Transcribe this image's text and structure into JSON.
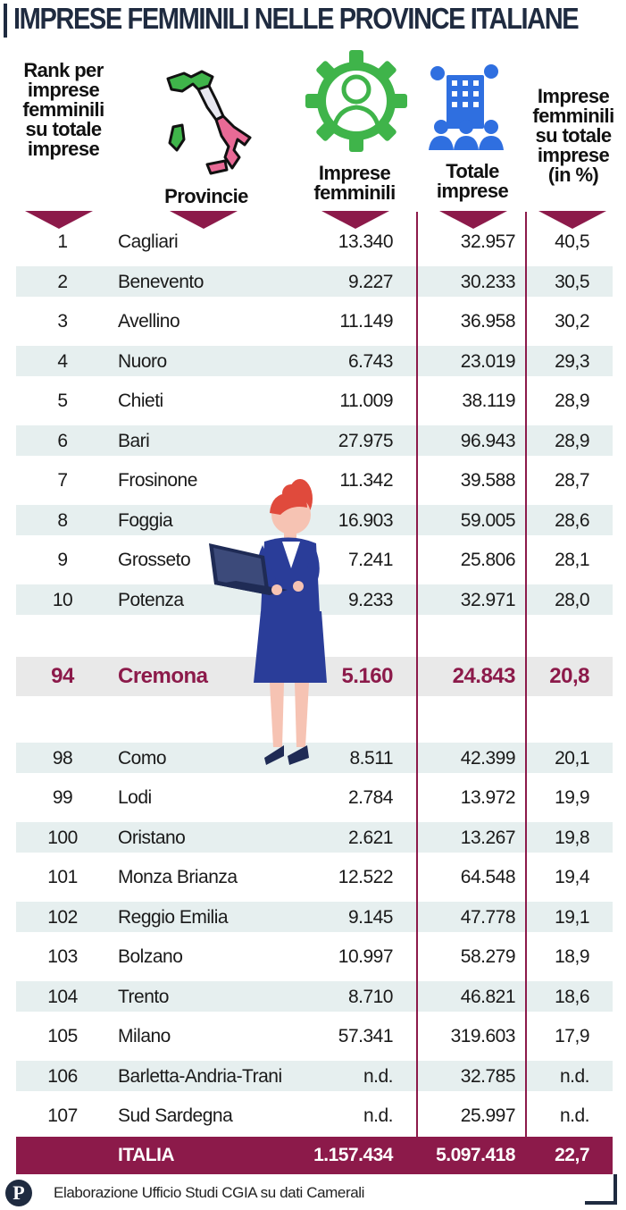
{
  "title": "IMPRESE FEMMINILI NELLE PROVINCE ITALIANE",
  "headers": {
    "rank": "Rank per imprese femminili su totale imprese",
    "provincie": "Provincie",
    "femminili": "Imprese femminili",
    "totale": "Totale imprese",
    "percent": "Imprese femminili su totale imprese (in %)"
  },
  "chart_data": {
    "type": "table",
    "title": "IMPRESE FEMMINILI NELLE PROVINCE ITALIANE",
    "columns": [
      "Rank per imprese femminili su totale imprese",
      "Provincie",
      "Imprese femminili",
      "Totale imprese",
      "Imprese femminili su totale imprese (in %)"
    ],
    "rows": [
      {
        "rank": "1",
        "provincia": "Cagliari",
        "femminili": "13.340",
        "totale": "32.957",
        "percent": "40,5"
      },
      {
        "rank": "2",
        "provincia": "Benevento",
        "femminili": "9.227",
        "totale": "30.233",
        "percent": "30,5"
      },
      {
        "rank": "3",
        "provincia": "Avellino",
        "femminili": "11.149",
        "totale": "36.958",
        "percent": "30,2"
      },
      {
        "rank": "4",
        "provincia": "Nuoro",
        "femminili": "6.743",
        "totale": "23.019",
        "percent": "29,3"
      },
      {
        "rank": "5",
        "provincia": "Chieti",
        "femminili": "11.009",
        "totale": "38.119",
        "percent": "28,9"
      },
      {
        "rank": "6",
        "provincia": "Bari",
        "femminili": "27.975",
        "totale": "96.943",
        "percent": "28,9"
      },
      {
        "rank": "7",
        "provincia": "Frosinone",
        "femminili": "11.342",
        "totale": "39.588",
        "percent": "28,7"
      },
      {
        "rank": "8",
        "provincia": "Foggia",
        "femminili": "16.903",
        "totale": "59.005",
        "percent": "28,6"
      },
      {
        "rank": "9",
        "provincia": "Grosseto",
        "femminili": "7.241",
        "totale": "25.806",
        "percent": "28,1"
      },
      {
        "rank": "10",
        "provincia": "Potenza",
        "femminili": "9.233",
        "totale": "32.971",
        "percent": "28,0"
      }
    ],
    "highlight": {
      "rank": "94",
      "provincia": "Cremona",
      "femminili": "5.160",
      "totale": "24.843",
      "percent": "20,8"
    },
    "rows_bottom": [
      {
        "rank": "98",
        "provincia": "Como",
        "femminili": "8.511",
        "totale": "42.399",
        "percent": "20,1"
      },
      {
        "rank": "99",
        "provincia": "Lodi",
        "femminili": "2.784",
        "totale": "13.972",
        "percent": "19,9"
      },
      {
        "rank": "100",
        "provincia": "Oristano",
        "femminili": "2.621",
        "totale": "13.267",
        "percent": "19,8"
      },
      {
        "rank": "101",
        "provincia": "Monza Brianza",
        "femminili": "12.522",
        "totale": "64.548",
        "percent": "19,4"
      },
      {
        "rank": "102",
        "provincia": "Reggio Emilia",
        "femminili": "9.145",
        "totale": "47.778",
        "percent": "19,1"
      },
      {
        "rank": "103",
        "provincia": "Bolzano",
        "femminili": "10.997",
        "totale": "58.279",
        "percent": "18,9"
      },
      {
        "rank": "104",
        "provincia": "Trento",
        "femminili": "8.710",
        "totale": "46.821",
        "percent": "18,6"
      },
      {
        "rank": "105",
        "provincia": "Milano",
        "femminili": "57.341",
        "totale": "319.603",
        "percent": "17,9"
      },
      {
        "rank": "106",
        "provincia": "Barletta-Andria-Trani",
        "femminili": "n.d.",
        "totale": "32.785",
        "percent": "n.d."
      },
      {
        "rank": "107",
        "provincia": "Sud Sardegna",
        "femminili": "n.d.",
        "totale": "25.997",
        "percent": "n.d."
      }
    ],
    "total": {
      "provincia": "ITALIA",
      "femminili": "1.157.434",
      "totale": "5.097.418",
      "percent": "22,7"
    }
  },
  "footer": {
    "logo": "P",
    "source": "Elaborazione Ufficio Studi CGIA su dati Camerali"
  },
  "icons": [
    "italy-map-icon",
    "businesswoman-gear-icon",
    "buildings-people-icon",
    "businesswoman-laptop-illustration"
  ],
  "colors": {
    "accent": "#8c1a4a",
    "navy": "#1f2b40",
    "row_shade": "#e6efef",
    "icon_green": "#3fb44a",
    "icon_blue": "#2f6fe0"
  }
}
